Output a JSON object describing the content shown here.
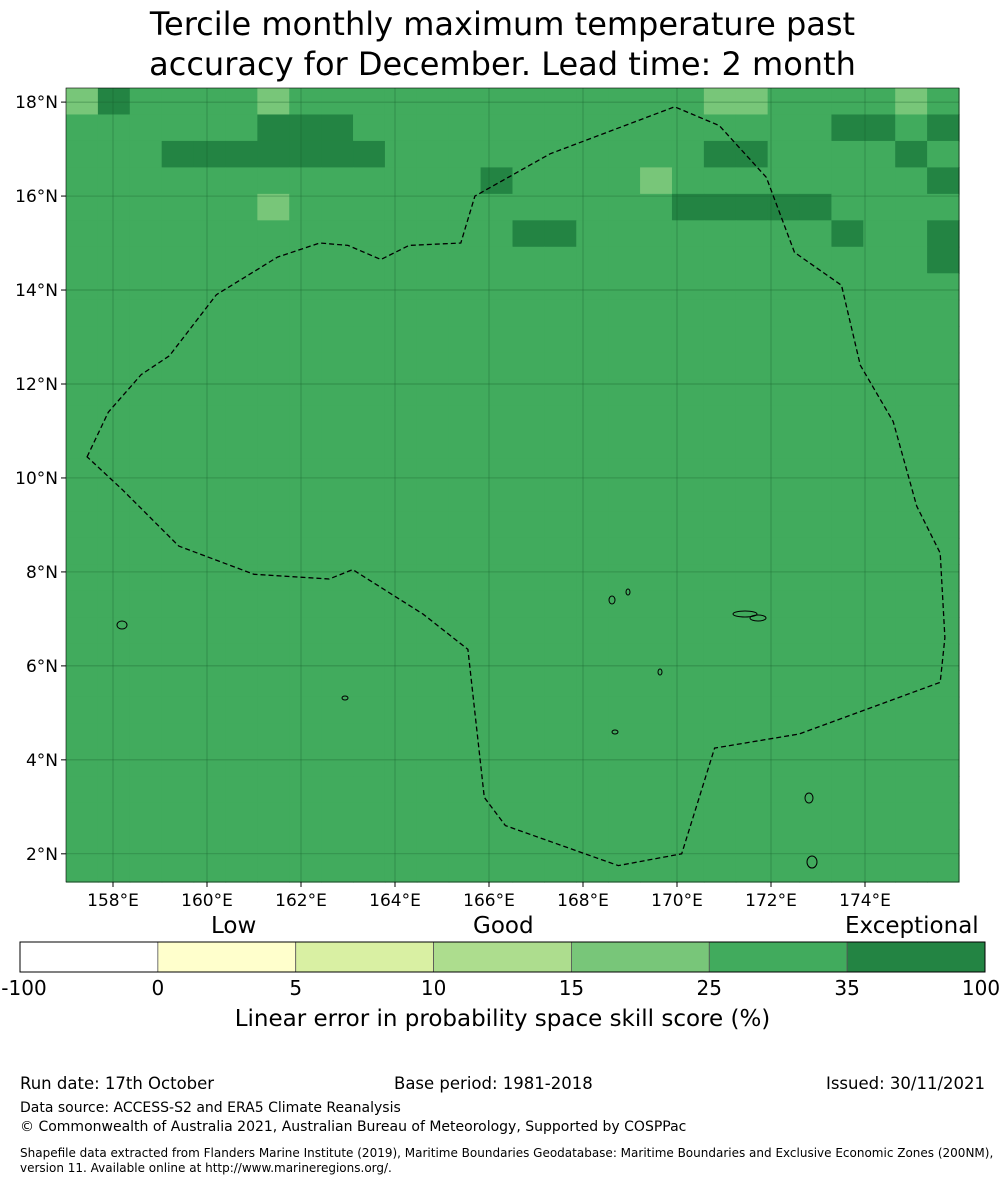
{
  "title_line1": "Tercile monthly maximum temperature past",
  "title_line2": "accuracy for December. Lead time: 2 month",
  "map": {
    "lon_range": [
      157,
      176
    ],
    "lat_range": [
      1.4,
      18.3
    ],
    "cell_size_deg": 0.8,
    "lat_ticks": [
      {
        "value": 18,
        "label": "18°N"
      },
      {
        "value": 16,
        "label": "16°N"
      },
      {
        "value": 14,
        "label": "14°N"
      },
      {
        "value": 12,
        "label": "12°N"
      },
      {
        "value": 10,
        "label": "10°N"
      },
      {
        "value": 8,
        "label": "8°N"
      },
      {
        "value": 6,
        "label": "6°N"
      },
      {
        "value": 4,
        "label": "4°N"
      },
      {
        "value": 2,
        "label": "2°N"
      }
    ],
    "lon_ticks": [
      {
        "value": 158,
        "label": "158°E"
      },
      {
        "value": 160,
        "label": "160°E"
      },
      {
        "value": 162,
        "label": "162°E"
      },
      {
        "value": 164,
        "label": "164°E"
      },
      {
        "value": 166,
        "label": "166°E"
      },
      {
        "value": 168,
        "label": "168°E"
      },
      {
        "value": 170,
        "label": "170°E"
      },
      {
        "value": 172,
        "label": "172°E"
      },
      {
        "value": 174,
        "label": "174°E"
      }
    ],
    "grid_categories_rows_north_to_south": [
      "2433332333333333333322333323",
      "3333334443333333333333334434",
      "3334444444333333333344333343",
      "3333333333333433332333333334",
      "3333332333333333333444443333",
      "3333333333333344333333334334",
      "3333333333333333333333333334",
      "3333333333333333333333333333",
      "3333333333333333333333333333",
      "3333333333333333333333333333",
      "3333333333333333333333333333",
      "3333333333333333333333333333",
      "3333333333333333333333333333",
      "3333333333333333333333333333",
      "3333333333333333333333333333",
      "3333333333333333333333333333",
      "3333333333333333333333333333",
      "3333333333333333333333333333",
      "3333333333333333333333333333",
      "3333333333333333333333333333",
      "3333333333333333333333333333",
      "3333333333333333333333333333",
      "3333333333333333333333333333",
      "3333333333333333333333333333",
      "3333333333333333333333333333",
      "3333333333333333333333333333",
      "3333333333333333333333333333",
      "3333333333333333333333333333",
      "3333333333333333333333333333",
      "3333333333333333333333333333"
    ],
    "eez_boundary": [
      [
        157.45,
        10.45
      ],
      [
        157.9,
        11.4
      ],
      [
        158.6,
        12.2
      ],
      [
        159.2,
        12.6
      ],
      [
        160.2,
        13.9
      ],
      [
        161.5,
        14.7
      ],
      [
        162.4,
        15.0
      ],
      [
        163.0,
        14.95
      ],
      [
        163.7,
        14.65
      ],
      [
        164.3,
        14.95
      ],
      [
        165.4,
        15.0
      ],
      [
        165.7,
        16.0
      ],
      [
        167.3,
        16.9
      ],
      [
        169.95,
        17.9
      ],
      [
        170.9,
        17.5
      ],
      [
        171.9,
        16.4
      ],
      [
        172.5,
        14.8
      ],
      [
        173.5,
        14.1
      ],
      [
        173.9,
        12.4
      ],
      [
        174.6,
        11.2
      ],
      [
        175.1,
        9.4
      ],
      [
        175.6,
        8.4
      ],
      [
        175.7,
        6.6
      ],
      [
        175.6,
        5.65
      ],
      [
        172.6,
        4.55
      ],
      [
        170.8,
        4.25
      ],
      [
        170.1,
        2.0
      ],
      [
        168.75,
        1.75
      ],
      [
        166.35,
        2.6
      ],
      [
        165.9,
        3.2
      ],
      [
        165.55,
        6.35
      ],
      [
        164.6,
        7.1
      ],
      [
        163.1,
        8.05
      ],
      [
        162.6,
        7.85
      ],
      [
        161.0,
        7.95
      ],
      [
        159.4,
        8.55
      ],
      [
        158.2,
        9.75
      ],
      [
        157.45,
        10.45
      ]
    ]
  },
  "colorbar": {
    "categories": [
      {
        "label": "Low"
      },
      {
        "label": "Good"
      },
      {
        "label": "Exceptional"
      }
    ],
    "bins": [
      {
        "from": -100,
        "to": 0,
        "color": "#ffffff"
      },
      {
        "from": 0,
        "to": 5,
        "color": "#ffffcc"
      },
      {
        "from": 5,
        "to": 10,
        "color": "#d9f0a3"
      },
      {
        "from": 10,
        "to": 15,
        "color": "#addd8e"
      },
      {
        "from": 15,
        "to": 25,
        "color": "#78c679"
      },
      {
        "from": 25,
        "to": 35,
        "color": "#41ab5d"
      },
      {
        "from": 35,
        "to": 100,
        "color": "#238443"
      }
    ],
    "tick_labels": [
      "-100",
      "0",
      "5",
      "10",
      "15",
      "25",
      "35",
      "100"
    ],
    "label": "Linear error in probability space skill score (%)"
  },
  "footer": {
    "run_date": "Run date: 17th October",
    "base_period": "Base period: 1981-2018",
    "issued": "Issued: 30/11/2021",
    "data_source": "Data source: ACCESS-S2 and ERA5 Climate Reanalysis",
    "copyright": "© Commonwealth of Australia 2021, Australian Bureau of Meteorology, Supported by COSPPac",
    "shapefile_note": "Shapefile data extracted from Flanders Marine Institute (2019), Maritime Boundaries Geodatabase: Maritime Boundaries and Exclusive Economic Zones (200NM), version 11. Available online at http://www.marineregions.org/."
  }
}
